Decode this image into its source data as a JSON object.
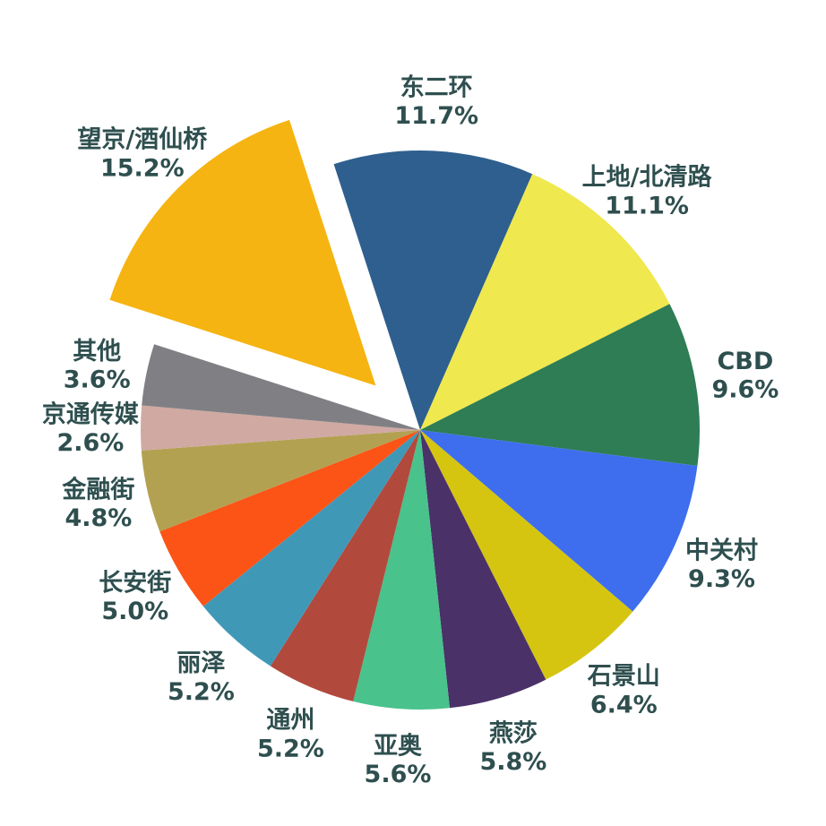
{
  "chart_data": {
    "type": "pie",
    "title": "",
    "legend": "none",
    "value_suffix": "%",
    "label_color": "#2F4F4F",
    "background_color": "#FFFFFF",
    "direction": "clockwise",
    "start_angle_deg": 108,
    "exploded_slice": "望京/酒仙桥",
    "explode_index": 13,
    "slices": [
      {
        "label": "东二环",
        "value": 11.7,
        "percent_label": "11.7%",
        "color": "#2E5F8E"
      },
      {
        "label": "上地/北清路",
        "value": 11.1,
        "percent_label": "11.1%",
        "color": "#EFE84E"
      },
      {
        "label": "CBD",
        "value": 9.6,
        "percent_label": "9.6%",
        "color": "#2E7D54"
      },
      {
        "label": "中关村",
        "value": 9.3,
        "percent_label": "9.3%",
        "color": "#3E6EED"
      },
      {
        "label": "石景山",
        "value": 6.4,
        "percent_label": "6.4%",
        "color": "#D5C511"
      },
      {
        "label": "燕莎",
        "value": 5.8,
        "percent_label": "5.8%",
        "color": "#4A3168"
      },
      {
        "label": "亚奥",
        "value": 5.6,
        "percent_label": "5.6%",
        "color": "#49C28C"
      },
      {
        "label": "通州",
        "value": 5.2,
        "percent_label": "5.2%",
        "color": "#B2493D"
      },
      {
        "label": "丽泽",
        "value": 5.2,
        "percent_label": "5.2%",
        "color": "#4098B7"
      },
      {
        "label": "长安街",
        "value": 5.0,
        "percent_label": "5.0%",
        "color": "#FB5416"
      },
      {
        "label": "金融街",
        "value": 4.8,
        "percent_label": "4.8%",
        "color": "#B3A152"
      },
      {
        "label": "京通传媒",
        "value": 2.6,
        "percent_label": "2.6%",
        "color": "#D0A9A3"
      },
      {
        "label": "其他",
        "value": 3.6,
        "percent_label": "3.6%",
        "color": "#808084"
      },
      {
        "label": "望京/酒仙桥",
        "value": 15.2,
        "percent_label": "15.2%",
        "color": "#F5B411"
      }
    ]
  }
}
